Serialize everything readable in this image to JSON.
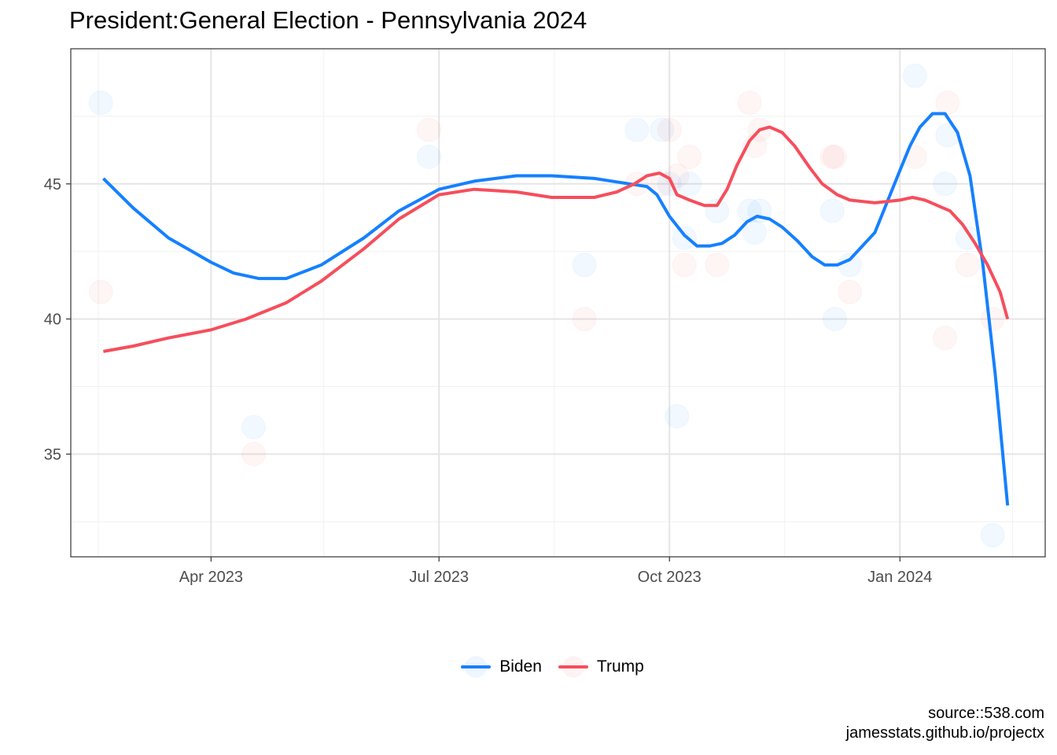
{
  "title": "President:General Election - Pennsylvania 2024",
  "caption": {
    "line1": "source::538.com",
    "line2": "jamesstats.github.io/projectx"
  },
  "colors": {
    "biden": "#1580FF",
    "trump": "#F64E5C",
    "grid_major": "#E5E5E5",
    "grid_minor": "#F1F1F1",
    "border": "#333333"
  },
  "chart_data": {
    "type": "scatter",
    "title": "President:General Election - Pennsylvania 2024",
    "xlabel": "",
    "ylabel": "",
    "x_axis": {
      "type": "date",
      "range": [
        "2023-02-04",
        "2024-02-28"
      ],
      "ticks": [
        {
          "date": "2023-04-01",
          "label": "Apr 2023"
        },
        {
          "date": "2023-07-01",
          "label": "Jul 2023"
        },
        {
          "date": "2023-10-01",
          "label": "Oct 2023"
        },
        {
          "date": "2024-01-01",
          "label": "Jan 2024"
        }
      ],
      "minor_ticks": [
        "2023-02-15",
        "2023-05-16",
        "2023-08-16",
        "2023-11-16",
        "2024-02-15"
      ]
    },
    "y_axis": {
      "range": [
        31.2,
        50.0
      ],
      "ticks": [
        35,
        40,
        45
      ],
      "minor_ticks": [
        32.5,
        37.5,
        42.5,
        47.5
      ]
    },
    "grid": true,
    "legend": "bottom",
    "series": [
      {
        "name": "Biden",
        "color": "#1580FF",
        "points": [
          [
            "2023-02-16",
            48
          ],
          [
            "2023-04-18",
            36
          ],
          [
            "2023-06-27",
            46
          ],
          [
            "2023-08-28",
            42
          ],
          [
            "2023-09-18",
            47
          ],
          [
            "2023-09-28",
            47
          ],
          [
            "2023-10-01",
            45
          ],
          [
            "2023-10-04",
            36.4
          ],
          [
            "2023-10-07",
            43
          ],
          [
            "2023-10-09",
            45
          ],
          [
            "2023-10-20",
            44
          ],
          [
            "2023-11-02",
            44
          ],
          [
            "2023-11-04",
            43.2
          ],
          [
            "2023-11-06",
            44
          ],
          [
            "2023-12-05",
            44
          ],
          [
            "2023-12-06",
            40
          ],
          [
            "2023-12-12",
            42
          ],
          [
            "2024-01-07",
            49
          ],
          [
            "2024-01-19",
            45
          ],
          [
            "2024-01-20",
            46.8
          ],
          [
            "2024-01-28",
            43
          ],
          [
            "2024-02-07",
            32
          ]
        ],
        "trend": [
          [
            "2023-02-17",
            45.2
          ],
          [
            "2023-03-01",
            44.1
          ],
          [
            "2023-03-15",
            43.0
          ],
          [
            "2023-04-01",
            42.1
          ],
          [
            "2023-04-10",
            41.7
          ],
          [
            "2023-04-20",
            41.5
          ],
          [
            "2023-05-01",
            41.5
          ],
          [
            "2023-05-15",
            42.0
          ],
          [
            "2023-06-01",
            43.0
          ],
          [
            "2023-06-15",
            44.0
          ],
          [
            "2023-07-01",
            44.8
          ],
          [
            "2023-07-15",
            45.1
          ],
          [
            "2023-08-01",
            45.3
          ],
          [
            "2023-08-15",
            45.3
          ],
          [
            "2023-09-01",
            45.2
          ],
          [
            "2023-09-15",
            45.0
          ],
          [
            "2023-09-22",
            44.9
          ],
          [
            "2023-09-26",
            44.6
          ],
          [
            "2023-10-01",
            43.8
          ],
          [
            "2023-10-07",
            43.1
          ],
          [
            "2023-10-12",
            42.7
          ],
          [
            "2023-10-17",
            42.7
          ],
          [
            "2023-10-22",
            42.8
          ],
          [
            "2023-10-27",
            43.1
          ],
          [
            "2023-11-01",
            43.6
          ],
          [
            "2023-11-05",
            43.8
          ],
          [
            "2023-11-10",
            43.7
          ],
          [
            "2023-11-15",
            43.4
          ],
          [
            "2023-11-21",
            42.9
          ],
          [
            "2023-11-27",
            42.3
          ],
          [
            "2023-12-02",
            42.0
          ],
          [
            "2023-12-07",
            42.0
          ],
          [
            "2023-12-12",
            42.2
          ],
          [
            "2023-12-22",
            43.2
          ],
          [
            "2024-01-01",
            45.5
          ],
          [
            "2024-01-05",
            46.4
          ],
          [
            "2024-01-09",
            47.1
          ],
          [
            "2024-01-14",
            47.6
          ],
          [
            "2024-01-19",
            47.6
          ],
          [
            "2024-01-24",
            46.9
          ],
          [
            "2024-01-29",
            45.3
          ],
          [
            "2024-02-03",
            42.1
          ],
          [
            "2024-02-08",
            38.0
          ],
          [
            "2024-02-13",
            33.1
          ]
        ]
      },
      {
        "name": "Trump",
        "color": "#F64E5C",
        "points": [
          [
            "2023-02-16",
            41
          ],
          [
            "2023-04-18",
            35
          ],
          [
            "2023-06-27",
            47
          ],
          [
            "2023-08-28",
            40
          ],
          [
            "2023-09-18",
            45
          ],
          [
            "2023-09-28",
            45
          ],
          [
            "2023-10-01",
            47
          ],
          [
            "2023-10-04",
            45.3
          ],
          [
            "2023-10-07",
            42
          ],
          [
            "2023-10-09",
            46
          ],
          [
            "2023-10-20",
            42
          ],
          [
            "2023-11-02",
            48
          ],
          [
            "2023-11-04",
            46.4
          ],
          [
            "2023-11-06",
            47
          ],
          [
            "2023-12-05",
            46
          ],
          [
            "2023-12-06",
            46
          ],
          [
            "2023-12-12",
            41
          ],
          [
            "2024-01-07",
            46
          ],
          [
            "2024-01-19",
            39.3
          ],
          [
            "2024-01-20",
            48
          ],
          [
            "2024-01-28",
            42
          ],
          [
            "2024-02-07",
            40
          ]
        ],
        "trend": [
          [
            "2023-02-17",
            38.8
          ],
          [
            "2023-03-01",
            39.0
          ],
          [
            "2023-03-15",
            39.3
          ],
          [
            "2023-04-01",
            39.6
          ],
          [
            "2023-04-15",
            40.0
          ],
          [
            "2023-05-01",
            40.6
          ],
          [
            "2023-05-15",
            41.4
          ],
          [
            "2023-06-01",
            42.6
          ],
          [
            "2023-06-15",
            43.7
          ],
          [
            "2023-07-01",
            44.6
          ],
          [
            "2023-07-15",
            44.8
          ],
          [
            "2023-08-01",
            44.7
          ],
          [
            "2023-08-15",
            44.5
          ],
          [
            "2023-09-01",
            44.5
          ],
          [
            "2023-09-10",
            44.7
          ],
          [
            "2023-09-17",
            45.0
          ],
          [
            "2023-09-22",
            45.3
          ],
          [
            "2023-09-27",
            45.4
          ],
          [
            "2023-10-01",
            45.2
          ],
          [
            "2023-10-04",
            44.6
          ],
          [
            "2023-10-09",
            44.4
          ],
          [
            "2023-10-15",
            44.2
          ],
          [
            "2023-10-20",
            44.2
          ],
          [
            "2023-10-24",
            44.8
          ],
          [
            "2023-10-28",
            45.7
          ],
          [
            "2023-11-02",
            46.6
          ],
          [
            "2023-11-06",
            47.0
          ],
          [
            "2023-11-10",
            47.1
          ],
          [
            "2023-11-15",
            46.9
          ],
          [
            "2023-11-20",
            46.4
          ],
          [
            "2023-11-26",
            45.6
          ],
          [
            "2023-12-01",
            45.0
          ],
          [
            "2023-12-07",
            44.6
          ],
          [
            "2023-12-12",
            44.4
          ],
          [
            "2023-12-22",
            44.3
          ],
          [
            "2024-01-01",
            44.4
          ],
          [
            "2024-01-06",
            44.5
          ],
          [
            "2024-01-11",
            44.4
          ],
          [
            "2024-01-16",
            44.2
          ],
          [
            "2024-01-21",
            44.0
          ],
          [
            "2024-01-26",
            43.5
          ],
          [
            "2024-01-31",
            42.8
          ],
          [
            "2024-02-05",
            42.0
          ],
          [
            "2024-02-10",
            41.0
          ],
          [
            "2024-02-13",
            40.0
          ]
        ]
      }
    ]
  }
}
